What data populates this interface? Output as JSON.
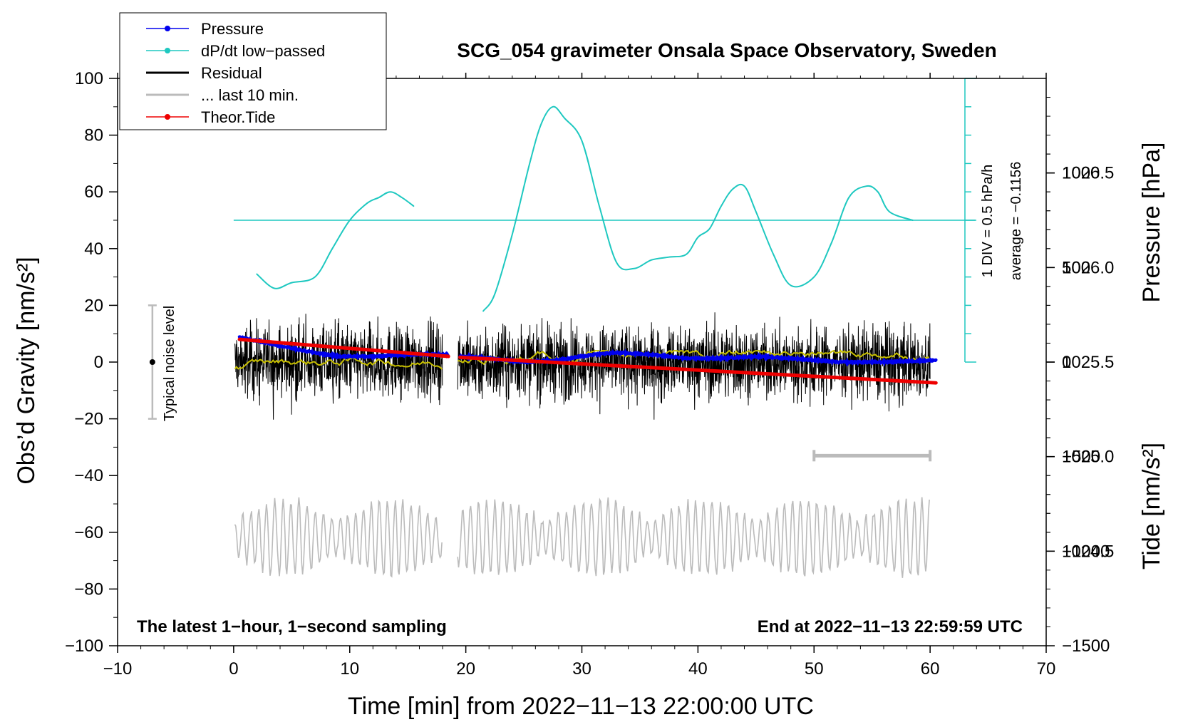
{
  "chart_data": {
    "type": "line",
    "title": "SCG_054 gravimeter Onsala Space Observatory, Sweden",
    "xlabel": "Time [min] from 2022−11−13 22:00:00 UTC",
    "ylabel": "Obs’d Gravity [nm/s²]",
    "ylabel2_top": "Pressure [hPa]",
    "ylabel2_bottom": "Tide [nm/s²]",
    "xlim": [
      -10,
      70
    ],
    "ylim": [
      -100,
      100
    ],
    "pressure_axis": {
      "range": [
        1024.0,
        1027.0
      ],
      "ticks": [
        1024.5,
        1025.0,
        1025.5,
        1026.0,
        1026.5
      ],
      "tick_labels": [
        "1024.5",
        "1025.0",
        "1025.5",
        "1026.0",
        "1026.5"
      ]
    },
    "tide_axis": {
      "range": [
        -1500,
        1500
      ],
      "ticks": [
        -1500,
        -1000,
        -500,
        0,
        500,
        1000
      ],
      "tick_labels": [
        "−1500",
        "−1000",
        "−500",
        "0",
        "500",
        "1000"
      ]
    },
    "x_ticks": [
      -10,
      0,
      10,
      20,
      30,
      40,
      50,
      60,
      70
    ],
    "x_tick_labels": [
      "−10",
      "0",
      "10",
      "20",
      "30",
      "40",
      "50",
      "60",
      "70"
    ],
    "y_ticks": [
      -100,
      -80,
      -60,
      -40,
      -20,
      0,
      20,
      40,
      60,
      80,
      100
    ],
    "y_tick_labels": [
      "−100",
      "−80",
      "−60",
      "−40",
      "−20",
      "0",
      "20",
      "40",
      "60",
      "80",
      "100"
    ],
    "legend": [
      {
        "label": "Pressure",
        "color": "#0000ee",
        "marker": "dot"
      },
      {
        "label": "dP/dt low−passed",
        "color": "#1ec8c0",
        "marker": "dot"
      },
      {
        "label": "Residual",
        "color": "#000000",
        "marker": "line"
      },
      {
        "label": "... last 10 min.",
        "color": "#bbbbbb",
        "marker": "line"
      },
      {
        "label": "Theor.Tide",
        "color": "#ee0000",
        "marker": "dot"
      }
    ],
    "dpdt_scale_label": "1 DIV = 0.5 hPa/h",
    "dpdt_average_label": "average = −0.1156",
    "dpdt_zero_level_gravity": 50,
    "noise_label": "Typical noise level",
    "noise_level": {
      "x": -7,
      "center": 0,
      "range": [
        -20,
        20
      ]
    },
    "bottom_left_note": "The latest 1−hour, 1−second sampling",
    "bottom_right_note": "End at 2022−11−13 22:59:59 UTC",
    "last10_marker_range": [
      50,
      60
    ],
    "last10_marker_level_gravity": -33,
    "series": [
      {
        "name": "Pressure",
        "color": "#0000ee",
        "axis": "pressure",
        "segments": [
          {
            "x": [
              0.5,
              3,
              6,
              9,
              12,
              15,
              18.5
            ],
            "y": [
              1025.63,
              1025.6,
              1025.56,
              1025.53,
              1025.53,
              1025.54,
              1025.54
            ]
          },
          {
            "x": [
              19.5,
              22,
              25,
              28,
              31,
              33,
              36,
              39,
              42,
              45,
              48,
              52,
              56,
              60.5
            ],
            "y": [
              1025.53,
              1025.52,
              1025.5,
              1025.51,
              1025.54,
              1025.55,
              1025.54,
              1025.52,
              1025.52,
              1025.53,
              1025.52,
              1025.5,
              1025.5,
              1025.51
            ]
          }
        ]
      },
      {
        "name": "dP/dt low−passed",
        "color": "#1ec8c0",
        "axis": "gravity",
        "segments": [
          {
            "x": [
              2,
              3.5,
              5,
              7,
              8.5,
              10,
              11.5,
              12.5,
              13.5,
              14.5,
              15.5
            ],
            "y": [
              31,
              26,
              28,
              30,
              40,
              50,
              56,
              58,
              60,
              58,
              55
            ]
          },
          {
            "x": [
              21.5,
              22.5,
              24,
              25.5,
              26.5,
              27.5,
              28.5,
              30,
              31.5,
              33,
              34.5,
              36,
              37.5,
              39,
              40,
              41,
              42,
              43,
              44,
              45,
              46.5,
              48,
              50,
              51.5,
              53,
              54.5,
              55.5,
              56.5,
              58.5
            ],
            "y": [
              18,
              24,
              45,
              70,
              84,
              90,
              86,
              78,
              55,
              35,
              33,
              36,
              37,
              38,
              44,
              47,
              55,
              61,
              62,
              53,
              38,
              27,
              30,
              42,
              58,
              62,
              60,
              53,
              50
            ]
          }
        ]
      },
      {
        "name": "Theor.Tide",
        "color": "#ee0000",
        "axis": "tide",
        "segments": [
          {
            "x": [
              0.5,
              18.5
            ],
            "y": [
              120,
              30
            ]
          },
          {
            "x": [
              19.5,
              60.5
            ],
            "y": [
              25,
              -110
            ]
          }
        ]
      }
    ]
  }
}
